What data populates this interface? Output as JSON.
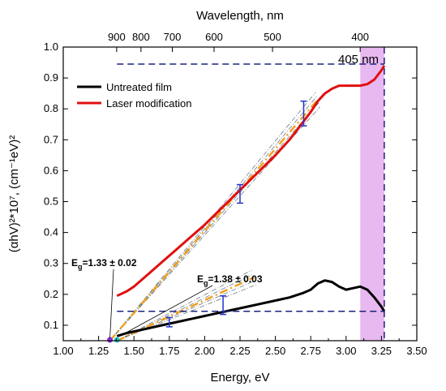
{
  "chart_data": {
    "type": "line",
    "title": "",
    "xlabel": "Energy, eV",
    "ylabel": "(αhV)²*10⁷, (cm⁻¹eV)²",
    "x2label": "Wavelength, nm",
    "xlim": [
      1.0,
      3.5
    ],
    "ylim": [
      0.05,
      1.0
    ],
    "x_ticks": [
      1.0,
      1.25,
      1.5,
      1.75,
      2.0,
      2.25,
      2.5,
      2.75,
      3.0,
      3.25,
      3.5
    ],
    "x_tick_labels": [
      "1.00",
      "1.25",
      "1.50",
      "1.75",
      "2.00",
      "2.25",
      "2.50",
      "2.75",
      "3.00",
      "3.25",
      "3.50"
    ],
    "y_ticks": [
      0.1,
      0.2,
      0.3,
      0.4,
      0.5,
      0.6,
      0.7,
      0.8,
      0.9,
      1.0
    ],
    "y_tick_labels": [
      "0.1",
      "0.2",
      "0.3",
      "0.4",
      "0.5",
      "0.6",
      "0.7",
      "0.8",
      "0.9",
      "1.0"
    ],
    "top_ticks_nm": [
      900,
      800,
      700,
      600,
      500,
      400
    ],
    "top_tick_labels": [
      "900",
      "800",
      "700",
      "600",
      "500",
      "400"
    ],
    "legend_position": "top-left",
    "series": [
      {
        "name": "Untreated film",
        "color": "#000000",
        "x": [
          1.38,
          1.45,
          1.5,
          1.6,
          1.7,
          1.8,
          1.9,
          2.0,
          2.1,
          2.2,
          2.3,
          2.4,
          2.5,
          2.6,
          2.7,
          2.75,
          2.8,
          2.85,
          2.9,
          2.95,
          3.0,
          3.05,
          3.1,
          3.15,
          3.2,
          3.25,
          3.27
        ],
        "y": [
          0.065,
          0.075,
          0.08,
          0.09,
          0.1,
          0.11,
          0.12,
          0.13,
          0.14,
          0.15,
          0.16,
          0.17,
          0.18,
          0.19,
          0.205,
          0.215,
          0.235,
          0.245,
          0.24,
          0.225,
          0.215,
          0.22,
          0.225,
          0.215,
          0.19,
          0.16,
          0.145
        ]
      },
      {
        "name": "Laser modification",
        "color": "#e01010",
        "x": [
          1.38,
          1.45,
          1.5,
          1.6,
          1.7,
          1.8,
          1.9,
          2.0,
          2.1,
          2.2,
          2.3,
          2.4,
          2.5,
          2.6,
          2.7,
          2.75,
          2.8,
          2.85,
          2.9,
          2.95,
          3.0,
          3.05,
          3.1,
          3.15,
          3.2,
          3.25,
          3.27
        ],
        "y": [
          0.195,
          0.21,
          0.225,
          0.265,
          0.305,
          0.345,
          0.385,
          0.425,
          0.47,
          0.515,
          0.56,
          0.605,
          0.65,
          0.7,
          0.76,
          0.79,
          0.825,
          0.85,
          0.865,
          0.875,
          0.875,
          0.875,
          0.875,
          0.88,
          0.895,
          0.925,
          0.94
        ]
      }
    ],
    "fits": [
      {
        "x": [
          1.33,
          2.8
        ],
        "y": [
          0.05,
          0.83
        ]
      },
      {
        "x": [
          1.38,
          2.35
        ],
        "y": [
          0.05,
          0.255
        ]
      }
    ],
    "error_bars": [
      {
        "x": 2.25,
        "y": 0.525,
        "err": 0.03
      },
      {
        "x": 2.7,
        "y": 0.785,
        "err": 0.04
      },
      {
        "x": 1.75,
        "y": 0.11,
        "err": 0.015
      },
      {
        "x": 2.13,
        "y": 0.165,
        "err": 0.03
      }
    ],
    "hlines": [
      0.945,
      0.145
    ],
    "vline": 3.27,
    "shaded_band": [
      3.1,
      3.27
    ],
    "annotations": {
      "wavelength_label": "405 nm",
      "eg1_E": "E",
      "eg1_sub": "g",
      "eg1_text": "=1.33 ± 0.02",
      "eg1_x": 1.33,
      "eg2_E": "E",
      "eg2_sub": "g",
      "eg2_text": "=1.38 ± 0.03",
      "eg2_x": 1.38
    },
    "colors": {
      "fit_line": "#f0a020",
      "fit_envelope": "#5a6a7a",
      "error_bar": "#2233cc",
      "hline": "#1a237e",
      "band": "#e8b8f0",
      "eg1_marker": "#8a2be2",
      "eg2_marker": "#22cccc"
    }
  }
}
